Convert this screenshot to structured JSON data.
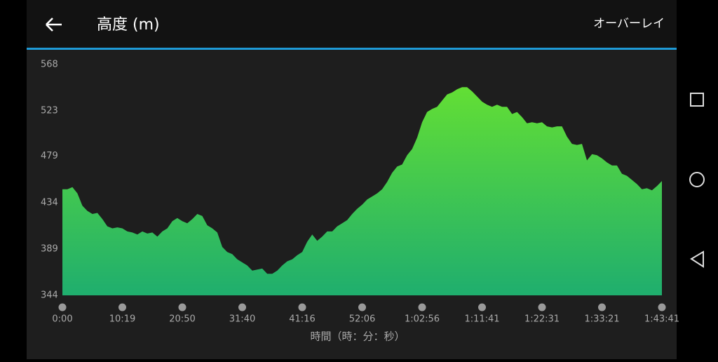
{
  "app_bar": {
    "title": "高度 (m)",
    "action": "オーバーレイ"
  },
  "chart_data": {
    "type": "area",
    "x_label": "時間（時：分：秒）",
    "categories": [
      "0:00",
      null,
      null,
      null,
      null,
      null,
      null,
      null,
      null,
      null,
      null,
      null,
      "10:19",
      null,
      null,
      null,
      null,
      null,
      null,
      null,
      null,
      null,
      null,
      null,
      "20:50",
      null,
      null,
      null,
      null,
      null,
      null,
      null,
      null,
      null,
      null,
      null,
      "31:40",
      null,
      null,
      null,
      null,
      null,
      null,
      null,
      null,
      null,
      null,
      null,
      "41:16",
      null,
      null,
      null,
      null,
      null,
      null,
      null,
      null,
      null,
      null,
      null,
      "52:06",
      null,
      null,
      null,
      null,
      null,
      null,
      null,
      null,
      null,
      null,
      null,
      "1:02:56",
      null,
      null,
      null,
      null,
      null,
      null,
      null,
      null,
      null,
      null,
      null,
      "1:11:41",
      null,
      null,
      null,
      null,
      null,
      null,
      null,
      null,
      null,
      null,
      null,
      "1:22:31",
      null,
      null,
      null,
      null,
      null,
      null,
      null,
      null,
      null,
      null,
      null,
      "1:33:21",
      null,
      null,
      null,
      null,
      null,
      null,
      null,
      null,
      null,
      null,
      null,
      "1:43:41"
    ],
    "values": [
      447,
      447,
      449,
      443,
      431,
      426,
      423,
      424,
      418,
      411,
      409,
      410,
      409,
      406,
      405,
      403,
      406,
      404,
      405,
      401,
      406,
      409,
      416,
      419,
      416,
      414,
      418,
      423,
      421,
      412,
      409,
      405,
      391,
      386,
      384,
      379,
      376,
      373,
      368,
      369,
      370,
      365,
      365,
      368,
      373,
      377,
      379,
      383,
      386,
      396,
      403,
      397,
      401,
      406,
      406,
      411,
      414,
      417,
      423,
      428,
      432,
      437,
      440,
      443,
      447,
      454,
      463,
      469,
      471,
      480,
      486,
      497,
      512,
      522,
      525,
      527,
      533,
      539,
      541,
      544,
      546,
      546,
      542,
      537,
      532,
      529,
      527,
      529,
      527,
      527,
      520,
      522,
      517,
      511,
      512,
      511,
      512,
      508,
      507,
      508,
      508,
      498,
      491,
      490,
      491,
      475,
      481,
      480,
      477,
      473,
      470,
      470,
      462,
      460,
      456,
      452,
      447,
      448,
      446,
      450,
      455
    ],
    "gradient": [
      "#6ae42e",
      "#1fae6e"
    ],
    "ylim": [
      344,
      568
    ],
    "yticks": [
      344,
      389,
      434,
      479,
      523,
      568
    ]
  }
}
